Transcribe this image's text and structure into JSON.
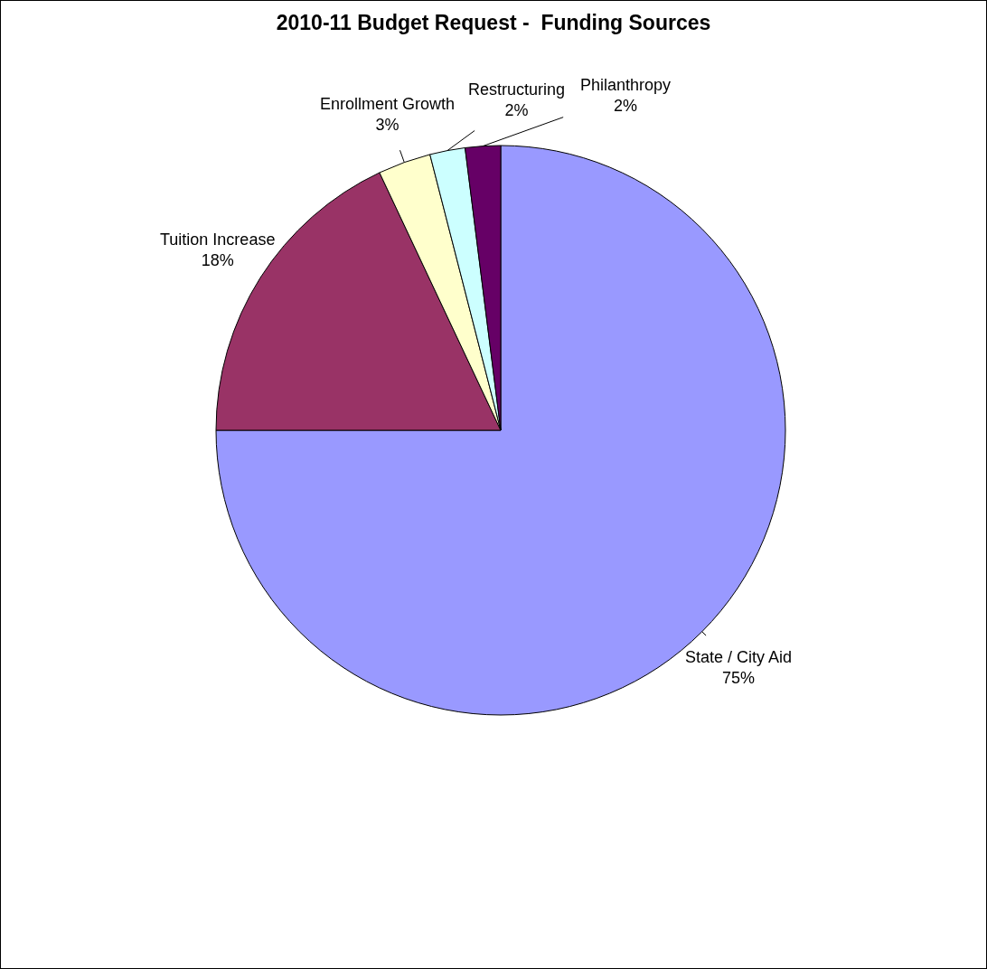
{
  "chart_data": {
    "type": "pie",
    "title": "2010-11 Budget Request -  Funding Sources",
    "categories": [
      "State / City Aid",
      "Tuition Increase",
      "Enrollment Growth",
      "Restructuring",
      "Philanthropy"
    ],
    "values": [
      75,
      18,
      3,
      2,
      2
    ],
    "value_labels": [
      "75%",
      "18%",
      "3%",
      "2%",
      "2%"
    ],
    "colors": [
      "#9999ff",
      "#993366",
      "#ffffcc",
      "#ccffff",
      "#660066"
    ]
  }
}
